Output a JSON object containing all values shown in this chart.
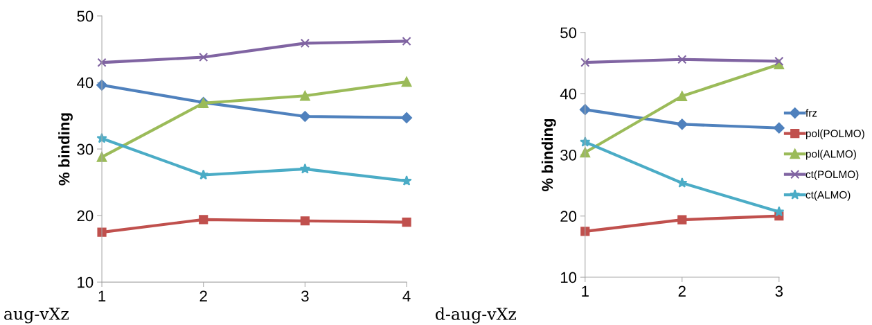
{
  "chart_data": [
    {
      "type": "line",
      "ylabel": "% binding",
      "x": [
        1,
        2,
        3,
        4
      ],
      "xlim": [
        1,
        4
      ],
      "xticks": [
        1,
        2,
        3,
        4
      ],
      "ylim": [
        10,
        50
      ],
      "yticks": [
        10,
        20,
        30,
        40,
        50
      ],
      "grid": false,
      "legend": false,
      "annotations": [
        "aug-vXz"
      ],
      "series": [
        {
          "color": "#4f81bd",
          "marker": "diamond",
          "values": [
            39.6,
            37.0,
            34.9,
            34.7
          ]
        },
        {
          "color": "#c0504d",
          "marker": "square",
          "values": [
            17.5,
            19.4,
            19.2,
            19.0
          ]
        },
        {
          "color": "#9bbb59",
          "marker": "triangle",
          "values": [
            28.8,
            36.9,
            38.0,
            40.1
          ]
        },
        {
          "color": "#8064a2",
          "marker": "cross",
          "values": [
            43.0,
            43.8,
            45.9,
            46.2
          ]
        },
        {
          "color": "#4bacc6",
          "marker": "star",
          "values": [
            31.6,
            26.1,
            27.0,
            25.2
          ]
        }
      ]
    },
    {
      "type": "line",
      "ylabel": "% binding",
      "x": [
        1,
        2,
        3
      ],
      "xlim": [
        1,
        3
      ],
      "xticks": [
        1,
        2,
        3
      ],
      "ylim": [
        10,
        50
      ],
      "yticks": [
        10,
        20,
        30,
        40,
        50
      ],
      "grid": false,
      "legend": "right",
      "annotations": [
        "d-aug-vXz"
      ],
      "series": [
        {
          "name": "frz",
          "color": "#4f81bd",
          "marker": "diamond",
          "values": [
            37.4,
            35.0,
            34.4
          ]
        },
        {
          "name": "pol(POLMO)",
          "color": "#c0504d",
          "marker": "square",
          "values": [
            17.5,
            19.4,
            20.0
          ]
        },
        {
          "name": "pol(ALMO)",
          "color": "#9bbb59",
          "marker": "triangle",
          "values": [
            30.4,
            39.6,
            44.8
          ]
        },
        {
          "name": "ct(POLMO)",
          "color": "#8064a2",
          "marker": "cross",
          "values": [
            45.1,
            45.6,
            45.3
          ]
        },
        {
          "name": "ct(ALMO)",
          "color": "#4bacc6",
          "marker": "star",
          "values": [
            32.1,
            25.4,
            20.7
          ]
        }
      ]
    }
  ]
}
